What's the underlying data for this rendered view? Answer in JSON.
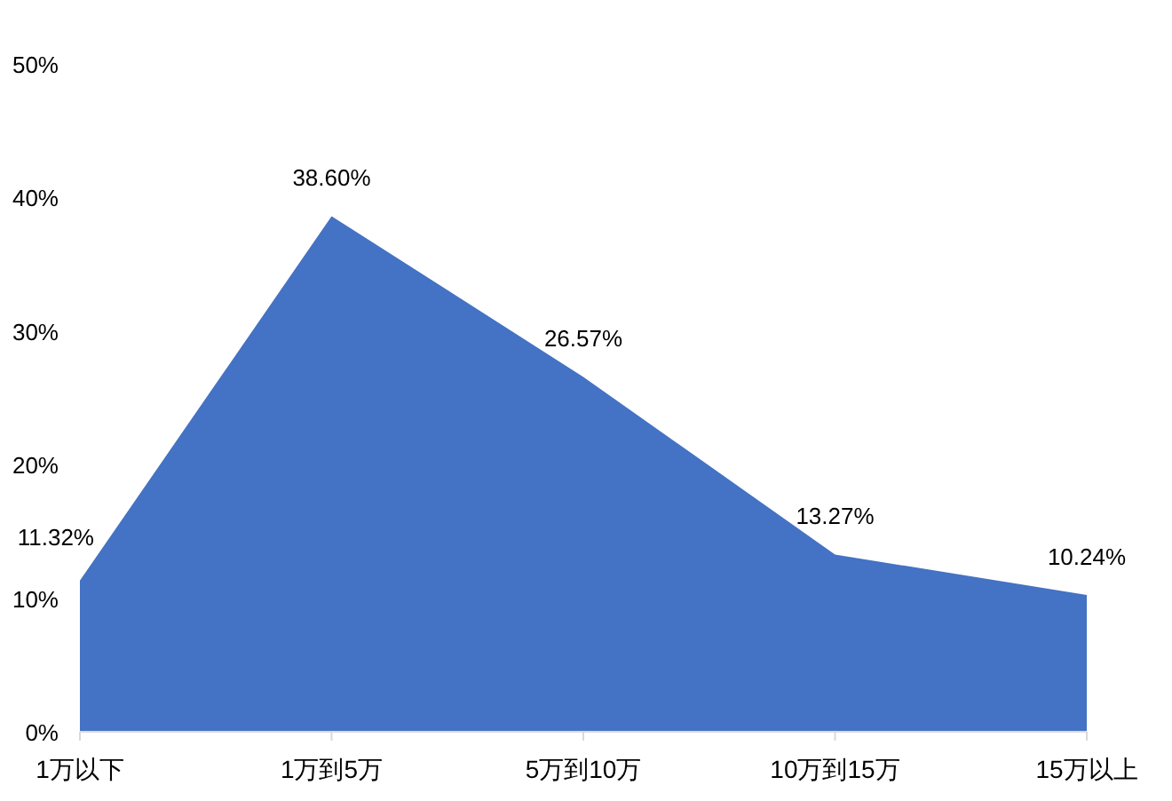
{
  "chart_data": {
    "type": "area",
    "categories": [
      "1万以下",
      "1万到5万",
      "5万到10万",
      "10万到15万",
      "15万以上"
    ],
    "values": [
      11.32,
      38.6,
      26.57,
      13.27,
      10.24
    ],
    "value_labels": [
      "11.32%",
      "38.60%",
      "26.57%",
      "13.27%",
      "10.24%"
    ],
    "color": "#4472c4",
    "ylim": [
      0,
      50
    ],
    "yticks": [
      {
        "value": 0,
        "label": "0%"
      },
      {
        "value": 10,
        "label": "10%"
      },
      {
        "value": 20,
        "label": "20%"
      },
      {
        "value": 30,
        "label": "30%"
      },
      {
        "value": 40,
        "label": "40%"
      },
      {
        "value": 50,
        "label": "50%"
      }
    ]
  }
}
